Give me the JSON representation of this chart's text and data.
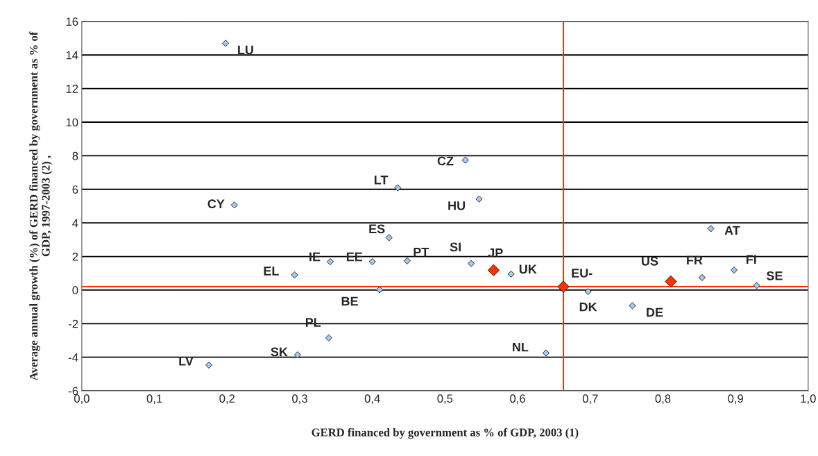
{
  "chart_data": {
    "type": "scatter",
    "xlabel": "GERD financed by government as % of GDP, 2003 (1)",
    "ylabel": "Average annual growth (%) of GERD financed by government as % of\nGDP, 1997-2003 (2) ,",
    "series": [
      {
        "color": "#a6caf0",
        "marker": "diamond",
        "x": [
          0.198,
          0.21,
          0.435,
          0.528,
          0.547,
          0.423,
          0.342,
          0.4,
          0.448,
          0.536,
          0.293,
          0.41,
          0.34,
          0.297,
          0.175,
          0.591,
          0.697,
          0.758,
          0.854,
          0.866,
          0.898,
          0.929,
          0.639
        ],
        "values": [
          14.7,
          5.07,
          6.09,
          7.74,
          5.42,
          3.12,
          1.69,
          1.69,
          1.74,
          1.58,
          0.9,
          0.02,
          -2.85,
          -3.86,
          -4.47,
          0.95,
          -0.09,
          -0.93,
          0.74,
          3.66,
          1.19,
          0.27,
          -3.75
        ]
      },
      {
        "color": "#ff3300",
        "marker": "diamond",
        "x": [
          0.567,
          0.663,
          0.811
        ],
        "values": [
          1.18,
          0.2,
          0.51
        ]
      }
    ],
    "annotations": [
      {
        "text": "LU",
        "x": 0.198,
        "y": 14.7
      },
      {
        "text": "CY",
        "x": 0.21,
        "y": 5.07
      },
      {
        "text": "LT",
        "x": 0.435,
        "y": 6.09
      },
      {
        "text": "CZ",
        "x": 0.528,
        "y": 7.74
      },
      {
        "text": "HU",
        "x": 0.547,
        "y": 5.42
      },
      {
        "text": "ES",
        "x": 0.423,
        "y": 3.12
      },
      {
        "text": "IE",
        "x": 0.342,
        "y": 1.69
      },
      {
        "text": "EE",
        "x": 0.4,
        "y": 1.69
      },
      {
        "text": "PT",
        "x": 0.448,
        "y": 1.74
      },
      {
        "text": "SI",
        "x": 0.536,
        "y": 1.58
      },
      {
        "text": "EL",
        "x": 0.293,
        "y": 0.9
      },
      {
        "text": "BE",
        "x": 0.41,
        "y": 0.02
      },
      {
        "text": "PL",
        "x": 0.34,
        "y": -2.85
      },
      {
        "text": "SK",
        "x": 0.297,
        "y": -3.86
      },
      {
        "text": "LV",
        "x": 0.175,
        "y": -4.47
      },
      {
        "text": "UK",
        "x": 0.591,
        "y": 0.95
      },
      {
        "text": "DK",
        "x": 0.697,
        "y": -0.09
      },
      {
        "text": "DE",
        "x": 0.758,
        "y": -0.93
      },
      {
        "text": "FR",
        "x": 0.854,
        "y": 0.74
      },
      {
        "text": "AT",
        "x": 0.866,
        "y": 3.66
      },
      {
        "text": "FI",
        "x": 0.898,
        "y": 1.19
      },
      {
        "text": "SE",
        "x": 0.929,
        "y": 0.27
      },
      {
        "text": "NL",
        "x": 0.639,
        "y": -3.75
      },
      {
        "text": "JP",
        "x": 0.567,
        "y": 1.18
      },
      {
        "text": "EU-",
        "x": 0.663,
        "y": 0.2
      },
      {
        "text": "US",
        "x": 0.811,
        "y": 0.51
      }
    ],
    "ref_lines": [
      {
        "axis": "x",
        "value": 0.663,
        "color": "#ff3300"
      },
      {
        "axis": "y",
        "value": 0.2,
        "color": "#ff3300"
      }
    ],
    "xlim": [
      0,
      1
    ],
    "ylim": [
      -6,
      16
    ],
    "xticks": [
      {
        "value": 0,
        "label": "0,0"
      },
      {
        "value": 0.1,
        "label": "0,1"
      },
      {
        "value": 0.2,
        "label": "0,2"
      },
      {
        "value": 0.3,
        "label": "0,3"
      },
      {
        "value": 0.4,
        "label": "0,4"
      },
      {
        "value": 0.5,
        "label": "0,5"
      },
      {
        "value": 0.6,
        "label": "0,6"
      },
      {
        "value": 0.7,
        "label": "0,7"
      },
      {
        "value": 0.8,
        "label": "0,8"
      },
      {
        "value": 0.9,
        "label": "0,9"
      },
      {
        "value": 1,
        "label": "1,0"
      }
    ],
    "yticks": [
      -6,
      -4,
      -2,
      0,
      2,
      4,
      6,
      8,
      10,
      12,
      14,
      16
    ],
    "grid": "y",
    "legend": false
  }
}
